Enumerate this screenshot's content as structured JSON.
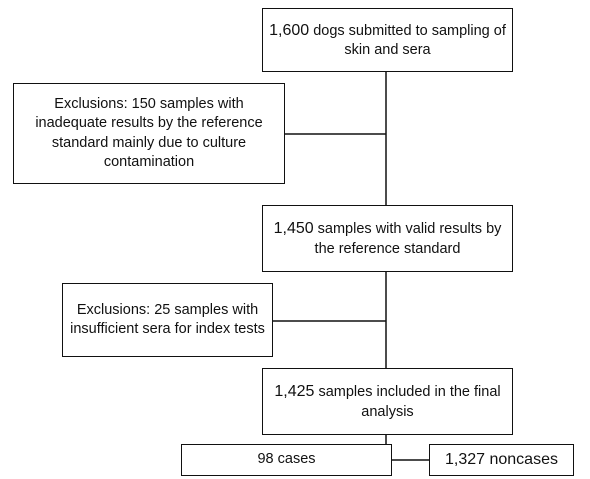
{
  "flowchart": {
    "start": {
      "number": "1,600",
      "text": " dogs submitted to sampling of skin and sera"
    },
    "exclusion_1": {
      "text": "Exclusions: 150 samples with inadequate results by  the reference standard mainly due to culture contamination"
    },
    "valid": {
      "number": "1,450",
      "text": " samples  with valid results by the reference standard"
    },
    "exclusion_2": {
      "text": "Exclusions: 25 samples with insufficient sera for index tests"
    },
    "included": {
      "number": "1,425",
      "text": " samples included in the final analysis"
    },
    "cases": {
      "text": "98 cases"
    },
    "noncases": {
      "text": "1,327 noncases"
    }
  }
}
